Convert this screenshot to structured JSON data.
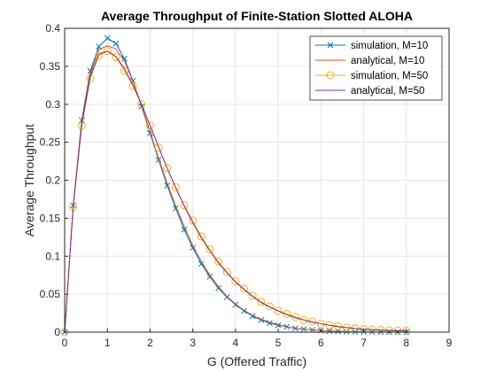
{
  "colors": {
    "sim10": "#0072BD",
    "ana10": "#D95319",
    "sim50": "#EDB120",
    "ana50": "#7E2F8E",
    "grid": "#e6e6e6",
    "axis": "#262626"
  },
  "chart_data": {
    "type": "line",
    "title": "Average Throughput of Finite-Station Slotted ALOHA",
    "xlabel": "G (Offered Traffic)",
    "ylabel": "Average Throughput",
    "xlim": [
      0,
      9
    ],
    "ylim": [
      0,
      0.4
    ],
    "xticks": [
      0,
      1,
      2,
      3,
      4,
      5,
      6,
      7,
      8,
      9
    ],
    "xtick_labels": [
      "0",
      "1",
      "2",
      "3",
      "4",
      "5",
      "6",
      "7",
      "8",
      "9"
    ],
    "yticks": [
      0,
      0.05,
      0.1,
      0.15,
      0.2,
      0.25,
      0.3,
      0.35,
      0.4
    ],
    "ytick_labels": [
      "0",
      "0.05",
      "0.1",
      "0.15",
      "0.2",
      "0.25",
      "0.3",
      "0.35",
      "0.4"
    ],
    "grid": true,
    "legend_position": "top-right",
    "x": [
      0,
      0.2,
      0.4,
      0.6,
      0.8,
      1.0,
      1.2,
      1.4,
      1.6,
      1.8,
      2.0,
      2.2,
      2.4,
      2.6,
      2.8,
      3.0,
      3.2,
      3.4,
      3.6,
      3.8,
      4.0,
      4.2,
      4.4,
      4.6,
      4.8,
      5.0,
      5.2,
      5.4,
      5.6,
      5.8,
      6.0,
      6.2,
      6.4,
      6.6,
      6.8,
      7.0,
      7.2,
      7.4,
      7.6,
      7.8,
      8.0
    ],
    "series": [
      {
        "name": "simulation, M=10",
        "marker": "x",
        "color": "#0072BD",
        "values": [
          0,
          0.167,
          0.279,
          0.344,
          0.376,
          0.387,
          0.38,
          0.36,
          0.331,
          0.297,
          0.262,
          0.227,
          0.193,
          0.163,
          0.135,
          0.111,
          0.09,
          0.073,
          0.058,
          0.046,
          0.036,
          0.028,
          0.021,
          0.016,
          0.012,
          0.009,
          0.007,
          0.005,
          0.004,
          0.003,
          0.002,
          0.0015,
          0.001,
          0.0007,
          0.0005,
          0.0003,
          0.0002,
          0.0001,
          0.0001,
          0.0,
          0.0
        ]
      },
      {
        "name": "analytical, M=10",
        "marker": "none",
        "color": "#D95319",
        "values": [
          0,
          0.166,
          0.276,
          0.341,
          0.372,
          0.377,
          0.373,
          0.357,
          0.33,
          0.298,
          0.264,
          0.229,
          0.196,
          0.166,
          0.139,
          0.114,
          0.093,
          0.075,
          0.06,
          0.047,
          0.037,
          0.029,
          0.022,
          0.017,
          0.013,
          0.01,
          0.007,
          0.005,
          0.004,
          0.003,
          0.002,
          0.0015,
          0.001,
          0.0007,
          0.0005,
          0.0003,
          0.0002,
          0.0001,
          0.0001,
          0.0,
          0.0
        ]
      },
      {
        "name": "simulation, M=50",
        "marker": "o",
        "color": "#EDB120",
        "values": [
          0,
          0.165,
          0.272,
          0.334,
          0.364,
          0.37,
          0.362,
          0.344,
          0.324,
          0.3,
          0.272,
          0.243,
          0.216,
          0.191,
          0.167,
          0.147,
          0.126,
          0.109,
          0.093,
          0.079,
          0.067,
          0.057,
          0.048,
          0.04,
          0.034,
          0.028,
          0.024,
          0.02,
          0.016,
          0.014,
          0.011,
          0.009,
          0.008,
          0.006,
          0.005,
          0.004,
          0.0035,
          0.003,
          0.0025,
          0.002,
          0.002
        ]
      },
      {
        "name": "analytical, M=50",
        "marker": "none",
        "color": "#7E2F8E",
        "values": [
          0,
          0.165,
          0.273,
          0.337,
          0.366,
          0.37,
          0.363,
          0.347,
          0.325,
          0.3,
          0.272,
          0.244,
          0.216,
          0.19,
          0.166,
          0.144,
          0.124,
          0.107,
          0.091,
          0.078,
          0.066,
          0.056,
          0.047,
          0.039,
          0.033,
          0.028,
          0.023,
          0.019,
          0.016,
          0.013,
          0.011,
          0.009,
          0.007,
          0.006,
          0.005,
          0.004,
          0.0033,
          0.0027,
          0.0022,
          0.0018,
          0.0015
        ]
      }
    ]
  }
}
